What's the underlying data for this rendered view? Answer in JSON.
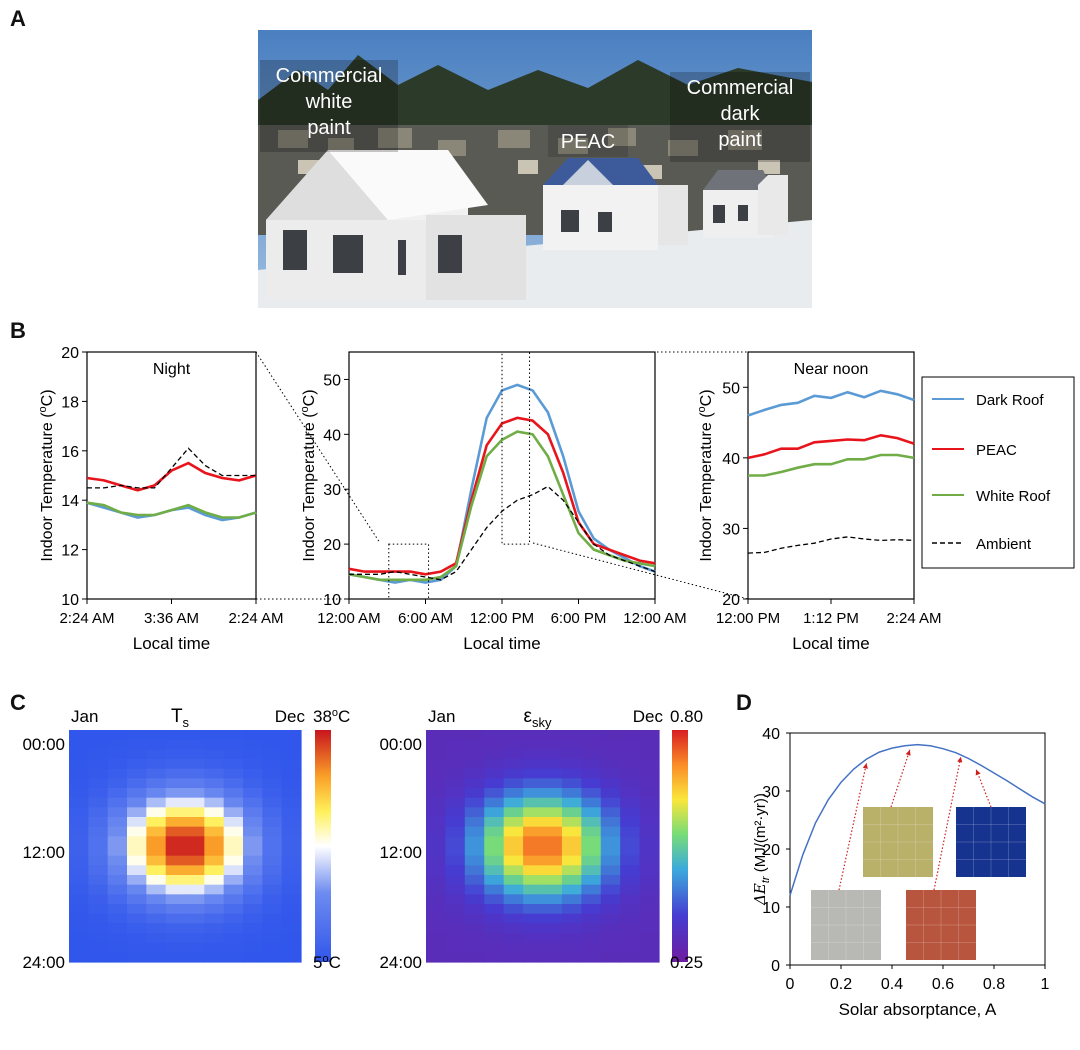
{
  "panels": {
    "a": "A",
    "b": "B",
    "c": "C",
    "d": "D"
  },
  "photo": {
    "label_white": [
      "Commercial",
      "white",
      "paint"
    ],
    "label_peac": "PEAC",
    "label_dark": [
      "Commercial",
      "dark",
      "paint"
    ]
  },
  "colors": {
    "dark_roof": "#5b9bd5",
    "peac": "#e8141b",
    "white_roof": "#70ad47",
    "ambient": "#000000"
  },
  "legend": [
    "Dark Roof",
    "PEAC",
    "White Roof",
    "Ambient"
  ],
  "chart_data": [
    {
      "type": "line",
      "panel": "B-left",
      "title": "Night",
      "xlabel": "Local time",
      "ylabel": "Indoor Temperature (oC)",
      "xticks": [
        "2:24 AM",
        "3:36 AM",
        "2:24 AM"
      ],
      "yticks": [
        "10",
        "12",
        "14",
        "16",
        "18",
        "20"
      ],
      "ylim": [
        10,
        20
      ],
      "x": [
        0,
        0.1,
        0.2,
        0.3,
        0.4,
        0.5,
        0.6,
        0.7,
        0.8,
        0.9,
        1.0
      ],
      "series": [
        {
          "name": "Dark Roof",
          "values": [
            13.9,
            13.7,
            13.5,
            13.3,
            13.4,
            13.6,
            13.7,
            13.4,
            13.2,
            13.3,
            13.5
          ]
        },
        {
          "name": "PEAC",
          "values": [
            14.9,
            14.8,
            14.6,
            14.4,
            14.6,
            15.2,
            15.5,
            15.1,
            14.9,
            14.8,
            15.0
          ]
        },
        {
          "name": "White Roof",
          "values": [
            13.9,
            13.8,
            13.5,
            13.4,
            13.4,
            13.6,
            13.8,
            13.5,
            13.3,
            13.3,
            13.5
          ]
        },
        {
          "name": "Ambient",
          "values": [
            14.5,
            14.5,
            14.6,
            14.5,
            14.5,
            15.3,
            16.1,
            15.4,
            15.0,
            15.0,
            15.0
          ]
        }
      ]
    },
    {
      "type": "line",
      "panel": "B-middle",
      "title": "",
      "xlabel": "Local time",
      "ylabel": "Indoor Temperature (oC)",
      "xticks": [
        "12:00 AM",
        "6:00 AM",
        "12:00 PM",
        "6:00 PM",
        "12:00 AM"
      ],
      "yticks": [
        "10",
        "20",
        "30",
        "40",
        "50"
      ],
      "ylim": [
        10,
        55
      ],
      "x": [
        0,
        0.05,
        0.1,
        0.15,
        0.2,
        0.25,
        0.3,
        0.35,
        0.4,
        0.45,
        0.5,
        0.55,
        0.6,
        0.65,
        0.7,
        0.75,
        0.8,
        0.85,
        0.9,
        0.95,
        1.0
      ],
      "series": [
        {
          "name": "Dark Roof",
          "values": [
            14.5,
            14,
            13.5,
            13,
            13.5,
            13,
            13.5,
            16,
            30,
            43,
            48,
            49,
            48,
            44,
            36,
            26,
            21,
            19,
            17.5,
            16,
            15
          ]
        },
        {
          "name": "PEAC",
          "values": [
            15.5,
            15,
            15,
            15,
            15,
            14.5,
            15,
            16.5,
            28,
            38,
            42,
            43,
            42.5,
            40,
            33,
            24,
            20,
            19,
            18,
            17,
            16.5
          ]
        },
        {
          "name": "White Roof",
          "values": [
            14.5,
            14,
            13.5,
            13.5,
            13.5,
            13.5,
            14,
            16,
            27,
            36,
            39,
            40.5,
            40,
            36,
            29,
            22,
            19,
            18,
            17,
            16.5,
            16
          ]
        },
        {
          "name": "Ambient",
          "values": [
            14.5,
            14.5,
            14.5,
            15,
            14.5,
            14,
            13.5,
            15,
            19,
            23,
            26,
            28,
            29,
            30.5,
            28,
            24,
            20,
            18,
            17,
            16,
            15
          ]
        }
      ],
      "zoom_boxes": [
        {
          "from_frac": 0.13,
          "to_frac": 0.26,
          "ylim": [
            10,
            20
          ]
        },
        {
          "from_frac": 0.5,
          "to_frac": 0.59,
          "ylim": [
            20,
            55
          ]
        }
      ]
    },
    {
      "type": "line",
      "panel": "B-right",
      "title": "Near noon",
      "xlabel": "Local time",
      "ylabel": "Indoor Temperature (oC)",
      "xticks": [
        "12:00 PM",
        "1:12 PM",
        "2:24 AM"
      ],
      "yticks": [
        "20",
        "30",
        "40",
        "50"
      ],
      "ylim": [
        20,
        55
      ],
      "x": [
        0,
        0.1,
        0.2,
        0.3,
        0.4,
        0.5,
        0.6,
        0.7,
        0.8,
        0.9,
        1.0
      ],
      "series": [
        {
          "name": "Dark Roof",
          "values": [
            46,
            46.8,
            47.5,
            47.8,
            48.8,
            48.5,
            49.3,
            48.6,
            49.5,
            49,
            48.2
          ]
        },
        {
          "name": "PEAC",
          "values": [
            40,
            40.5,
            41.3,
            41.3,
            42.2,
            42.4,
            42.6,
            42.5,
            43.2,
            42.8,
            42
          ]
        },
        {
          "name": "White Roof",
          "values": [
            37.5,
            37.5,
            38,
            38.6,
            39.1,
            39.1,
            39.8,
            39.8,
            40.4,
            40.4,
            40
          ]
        },
        {
          "name": "Ambient",
          "values": [
            26.5,
            26.6,
            27.2,
            27.6,
            27.9,
            28.5,
            28.8,
            28.5,
            28.3,
            28.4,
            28.3
          ]
        }
      ]
    },
    {
      "type": "heatmap",
      "panel": "C-left",
      "title": "T",
      "title_sub": "s",
      "x_start": "Jan",
      "x_end": "Dec",
      "y_start": "00:00",
      "y_mid": "12:00",
      "y_end": "24:00",
      "colorbar_max": "38oC",
      "colorbar_min": "5oC",
      "vmin": 5,
      "vmax": 38,
      "note": "12 months x 24 hours; peak ~38 near 12:00 in mid-year"
    },
    {
      "type": "heatmap",
      "panel": "C-right",
      "title": "ε",
      "title_sub": "sky",
      "x_start": "Jan",
      "x_end": "Dec",
      "y_start": "00:00",
      "y_mid": "12:00",
      "y_end": "24:00",
      "colorbar_max": "0.80",
      "colorbar_min": "0.25",
      "vmin": 0.25,
      "vmax": 0.8,
      "note": "12 months x 24 hours; peak ~0.75 near 12:00 in mid-year"
    },
    {
      "type": "line",
      "panel": "D",
      "xlabel": "Solar absorptance, A",
      "ylabel": "ΔE_tr (MJ/(m²·yr))",
      "xticks": [
        "0",
        "0.2",
        "0.4",
        "0.6",
        "0.8",
        "1"
      ],
      "yticks": [
        "0",
        "10",
        "20",
        "30",
        "40"
      ],
      "xlim": [
        0,
        1
      ],
      "ylim": [
        0,
        40
      ],
      "x": [
        0,
        0.05,
        0.1,
        0.15,
        0.2,
        0.25,
        0.3,
        0.35,
        0.4,
        0.45,
        0.5,
        0.55,
        0.6,
        0.65,
        0.7,
        0.75,
        0.8,
        0.85,
        0.9,
        0.95,
        1.0
      ],
      "series": [
        {
          "name": "ΔE_tr",
          "values": [
            12,
            19,
            24.5,
            28.5,
            31.5,
            33.8,
            35.5,
            36.7,
            37.4,
            37.8,
            38,
            37.8,
            37.3,
            36.6,
            35.6,
            34.4,
            33.1,
            31.8,
            30.4,
            29,
            27.8
          ]
        }
      ],
      "swatches": [
        {
          "name": "gray",
          "A": 0.3,
          "color": "#b8b8b4"
        },
        {
          "name": "olive",
          "A": 0.47,
          "color": "#b9b06a"
        },
        {
          "name": "terracotta",
          "A": 0.67,
          "color": "#b8553e"
        },
        {
          "name": "blue",
          "A": 0.73,
          "color": "#16348f"
        }
      ]
    }
  ]
}
